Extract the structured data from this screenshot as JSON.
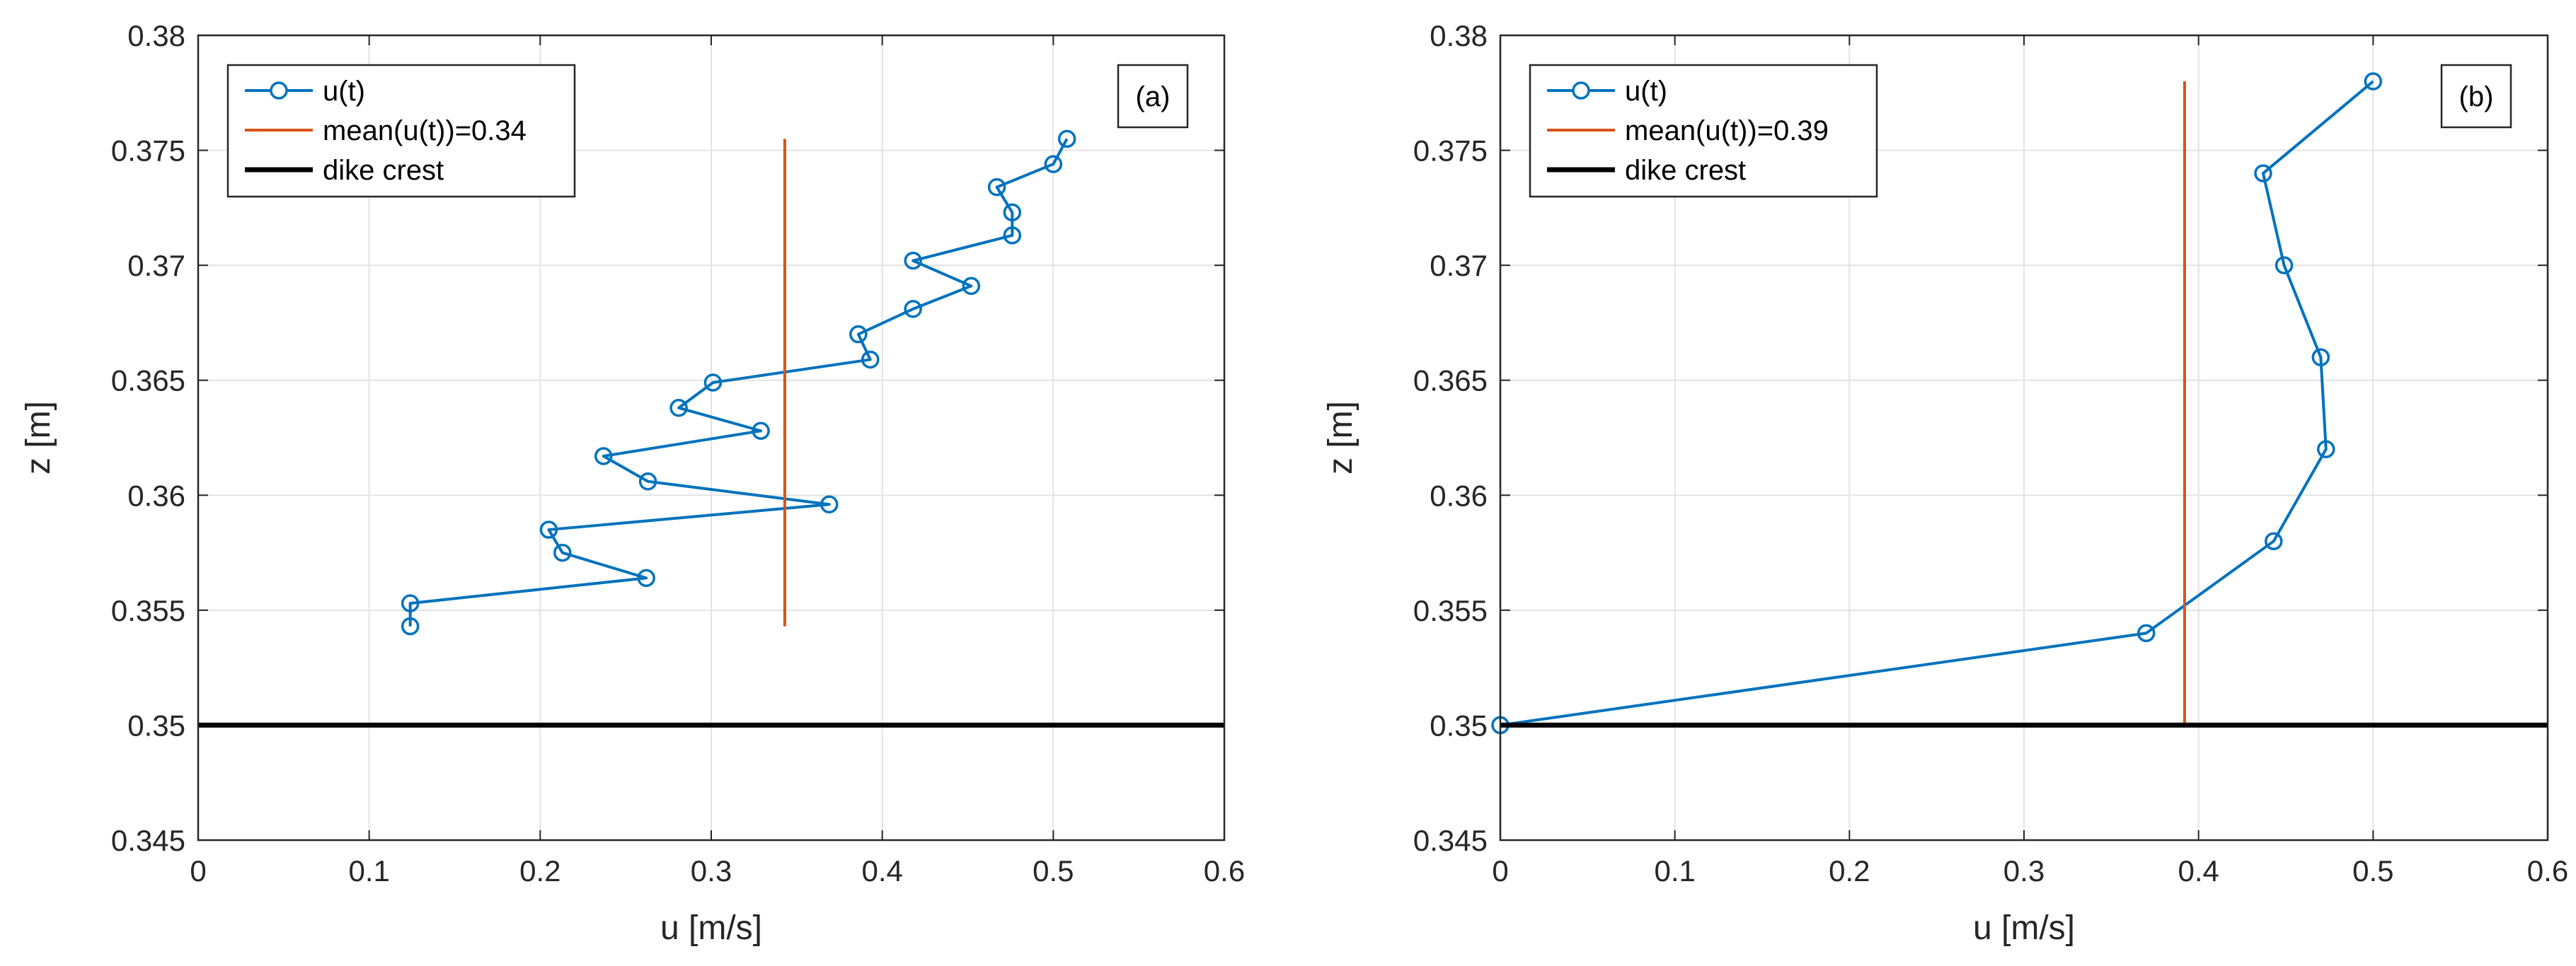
{
  "chart_data": [
    {
      "type": "line",
      "panel_label": "(a)",
      "xlabel": "u [m/s]",
      "ylabel": "z [m]",
      "xlim": [
        0,
        0.6
      ],
      "ylim": [
        0.345,
        0.38
      ],
      "xticks": [
        0,
        0.1,
        0.2,
        0.3,
        0.4,
        0.5,
        0.6
      ],
      "xtick_labels": [
        "0",
        "0.1",
        "0.2",
        "0.3",
        "0.4",
        "0.5",
        "0.6"
      ],
      "yticks": [
        0.345,
        0.35,
        0.355,
        0.36,
        0.365,
        0.37,
        0.375,
        0.38
      ],
      "ytick_labels": [
        "0.345",
        "0.35",
        "0.355",
        "0.36",
        "0.365",
        "0.37",
        "0.375",
        "0.38"
      ],
      "grid": true,
      "legend_position": "top-left",
      "legend": [
        "u(t)",
        "mean(u(t))=0.34",
        "dike crest"
      ],
      "series": [
        {
          "name": "u(t)",
          "color": "#0072BD",
          "marker": "circle",
          "x": [
            0.124,
            0.124,
            0.262,
            0.213,
            0.205,
            0.369,
            0.263,
            0.237,
            0.329,
            0.281,
            0.301,
            0.393,
            0.386,
            0.418,
            0.452,
            0.418,
            0.476,
            0.476,
            0.467,
            0.5,
            0.508
          ],
          "y": [
            0.3543,
            0.3553,
            0.3564,
            0.3575,
            0.3585,
            0.3596,
            0.3606,
            0.3617,
            0.3628,
            0.3638,
            0.3649,
            0.3659,
            0.367,
            0.3681,
            0.3691,
            0.3702,
            0.3713,
            0.3723,
            0.3734,
            0.3744,
            0.3755
          ]
        },
        {
          "name": "mean(u(t))=0.34",
          "color": "#D95319",
          "x": [
            0.343,
            0.343
          ],
          "y": [
            0.3543,
            0.3755
          ]
        },
        {
          "name": "dike crest",
          "color": "#000000",
          "x": [
            0,
            0.6
          ],
          "y": [
            0.35,
            0.35
          ]
        }
      ]
    },
    {
      "type": "line",
      "panel_label": "(b)",
      "xlabel": "u [m/s]",
      "ylabel": "z [m]",
      "xlim": [
        0,
        0.6
      ],
      "ylim": [
        0.345,
        0.38
      ],
      "xticks": [
        0,
        0.1,
        0.2,
        0.3,
        0.4,
        0.5,
        0.6
      ],
      "xtick_labels": [
        "0",
        "0.1",
        "0.2",
        "0.3",
        "0.4",
        "0.5",
        "0.6"
      ],
      "yticks": [
        0.345,
        0.35,
        0.355,
        0.36,
        0.365,
        0.37,
        0.375,
        0.38
      ],
      "ytick_labels": [
        "0.345",
        "0.35",
        "0.355",
        "0.36",
        "0.365",
        "0.37",
        "0.375",
        "0.38"
      ],
      "grid": true,
      "legend_position": "top-left",
      "legend": [
        "u(t)",
        "mean(u(t))=0.39",
        "dike crest"
      ],
      "series": [
        {
          "name": "u(t)",
          "color": "#0072BD",
          "marker": "circle",
          "x": [
            0,
            0.37,
            0.443,
            0.473,
            0.47,
            0.449,
            0.437,
            0.5
          ],
          "y": [
            0.35,
            0.354,
            0.358,
            0.362,
            0.366,
            0.37,
            0.374,
            0.378
          ]
        },
        {
          "name": "mean(u(t))=0.39",
          "color": "#D95319",
          "x": [
            0.392,
            0.392
          ],
          "y": [
            0.35,
            0.378
          ]
        },
        {
          "name": "dike crest",
          "color": "#000000",
          "x": [
            0,
            0.6
          ],
          "y": [
            0.35,
            0.35
          ]
        }
      ]
    }
  ]
}
